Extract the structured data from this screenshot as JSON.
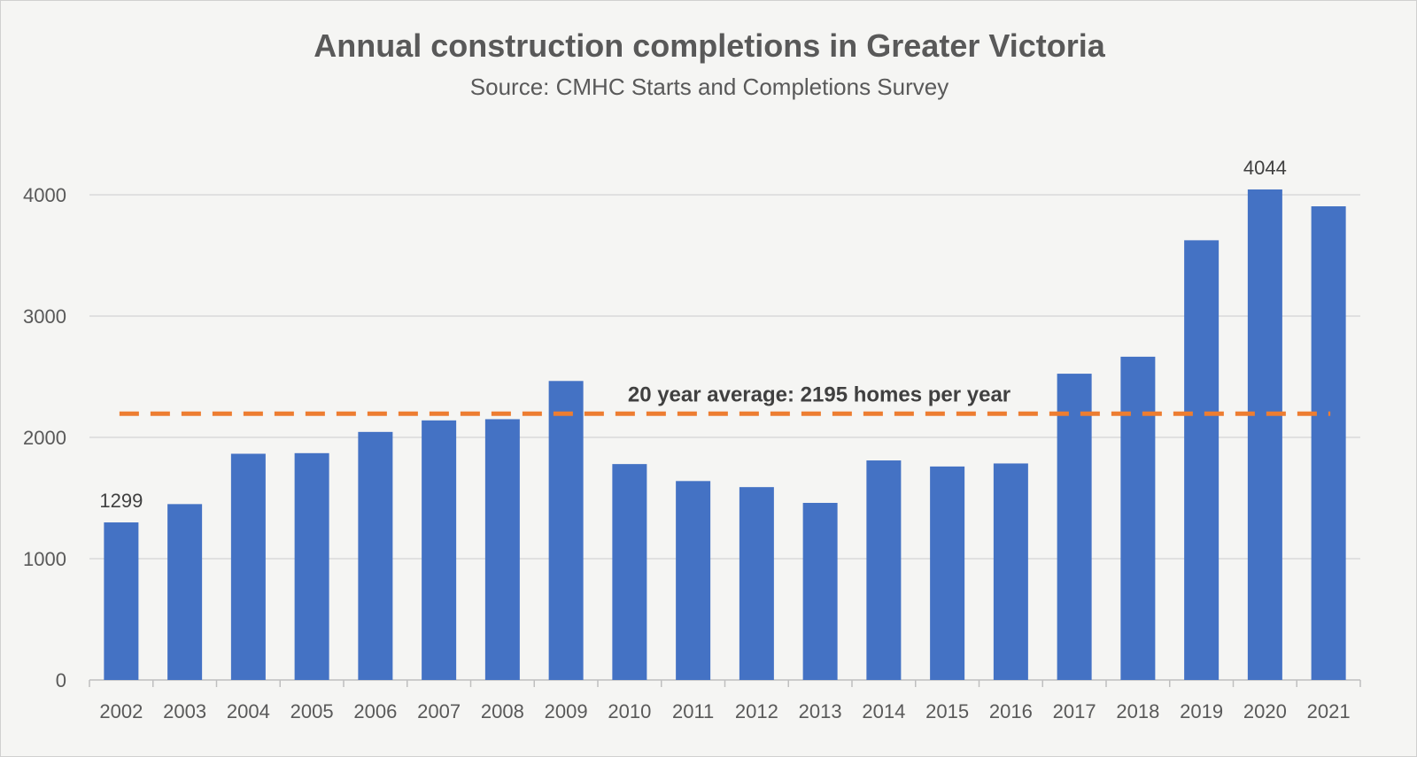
{
  "chart_data": {
    "type": "bar",
    "title": "Annual construction completions in Greater Victoria",
    "subtitle": "Source: CMHC Starts and Completions Survey",
    "xlabel": "",
    "ylabel": "",
    "categories": [
      "2002",
      "2003",
      "2004",
      "2005",
      "2006",
      "2007",
      "2008",
      "2009",
      "2010",
      "2011",
      "2012",
      "2013",
      "2014",
      "2015",
      "2016",
      "2017",
      "2018",
      "2019",
      "2020",
      "2021"
    ],
    "values": [
      1299,
      1450,
      1865,
      1870,
      2045,
      2140,
      2150,
      2465,
      1780,
      1640,
      1590,
      1460,
      1810,
      1760,
      1785,
      2525,
      2665,
      3625,
      4044,
      3905
    ],
    "data_labels": [
      {
        "category": "2002",
        "text": "1299"
      },
      {
        "category": "2020",
        "text": "4044"
      }
    ],
    "ylim": [
      0,
      4000
    ],
    "yticks": [
      0,
      1000,
      2000,
      3000,
      4000
    ],
    "grid": true,
    "legend": "none",
    "reference_line": {
      "value": 2195,
      "label": "20 year average: 2195 homes per year",
      "style": "dashed",
      "color": "#ED7D31"
    },
    "bar_color": "#4472C4",
    "gridline_color": "#d9d9d9"
  }
}
